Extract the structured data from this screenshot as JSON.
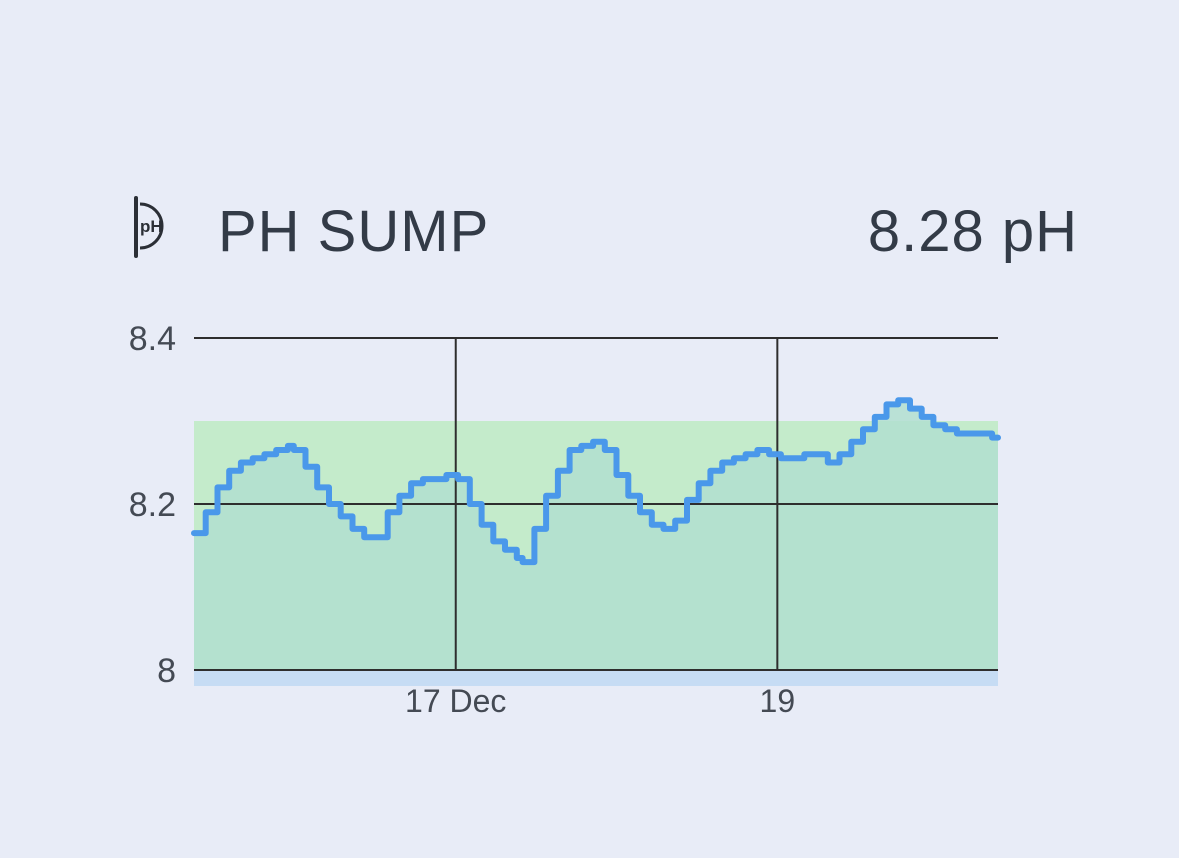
{
  "widget": {
    "icon": "ph-probe-icon",
    "icon_text": "pH",
    "title": "PH SUMP",
    "reading": "8.28 pH"
  },
  "colors": {
    "background": "#e8ecf7",
    "text": "#333b47",
    "line": "#4a98ea",
    "target_band": "#c4ebcb",
    "area_fill": "#b1dfd0",
    "baseline_strip": "#c6dcf4",
    "grid": "#2e2e2e"
  },
  "chart_data": {
    "type": "line",
    "series": [
      {
        "values": [
          [
            0.0,
            8.165
          ],
          [
            0.1,
            8.19
          ],
          [
            0.2,
            8.22
          ],
          [
            0.3,
            8.24
          ],
          [
            0.4,
            8.25
          ],
          [
            0.5,
            8.255
          ],
          [
            0.6,
            8.26
          ],
          [
            0.7,
            8.265
          ],
          [
            0.8,
            8.27
          ],
          [
            0.85,
            8.265
          ],
          [
            0.95,
            8.245
          ],
          [
            1.05,
            8.22
          ],
          [
            1.15,
            8.2
          ],
          [
            1.25,
            8.185
          ],
          [
            1.35,
            8.17
          ],
          [
            1.45,
            8.16
          ],
          [
            1.55,
            8.16
          ],
          [
            1.65,
            8.19
          ],
          [
            1.75,
            8.21
          ],
          [
            1.85,
            8.225
          ],
          [
            1.95,
            8.23
          ],
          [
            2.05,
            8.23
          ],
          [
            2.15,
            8.235
          ],
          [
            2.25,
            8.23
          ],
          [
            2.35,
            8.2
          ],
          [
            2.45,
            8.175
          ],
          [
            2.55,
            8.155
          ],
          [
            2.65,
            8.145
          ],
          [
            2.75,
            8.135
          ],
          [
            2.8,
            8.13
          ],
          [
            2.9,
            8.17
          ],
          [
            3.0,
            8.21
          ],
          [
            3.1,
            8.24
          ],
          [
            3.2,
            8.265
          ],
          [
            3.3,
            8.27
          ],
          [
            3.4,
            8.275
          ],
          [
            3.5,
            8.265
          ],
          [
            3.6,
            8.235
          ],
          [
            3.7,
            8.21
          ],
          [
            3.8,
            8.19
          ],
          [
            3.9,
            8.175
          ],
          [
            4.0,
            8.17
          ],
          [
            4.1,
            8.18
          ],
          [
            4.2,
            8.205
          ],
          [
            4.3,
            8.225
          ],
          [
            4.4,
            8.24
          ],
          [
            4.5,
            8.25
          ],
          [
            4.6,
            8.255
          ],
          [
            4.7,
            8.26
          ],
          [
            4.8,
            8.265
          ],
          [
            4.9,
            8.26
          ],
          [
            5.0,
            8.255
          ],
          [
            5.1,
            8.255
          ],
          [
            5.2,
            8.26
          ],
          [
            5.3,
            8.26
          ],
          [
            5.4,
            8.25
          ],
          [
            5.5,
            8.26
          ],
          [
            5.6,
            8.275
          ],
          [
            5.7,
            8.29
          ],
          [
            5.8,
            8.305
          ],
          [
            5.9,
            8.32
          ],
          [
            6.0,
            8.325
          ],
          [
            6.1,
            8.315
          ],
          [
            6.2,
            8.305
          ],
          [
            6.3,
            8.295
          ],
          [
            6.4,
            8.29
          ],
          [
            6.5,
            8.285
          ],
          [
            6.6,
            8.285
          ],
          [
            6.7,
            8.285
          ],
          [
            6.8,
            8.28
          ],
          [
            6.85,
            8.28
          ]
        ]
      }
    ],
    "x_ticks": [
      {
        "x": 2.23,
        "label": "17 Dec"
      },
      {
        "x": 4.97,
        "label": "19"
      }
    ],
    "xlim": [
      0,
      6.85
    ],
    "y_ticks": [
      {
        "y": 8.0,
        "label": "8"
      },
      {
        "y": 8.2,
        "label": "8.2"
      },
      {
        "y": 8.4,
        "label": "8.4"
      }
    ],
    "ylim": [
      8.0,
      8.4
    ],
    "target_range": [
      8.0,
      8.3
    ],
    "grid": true
  }
}
